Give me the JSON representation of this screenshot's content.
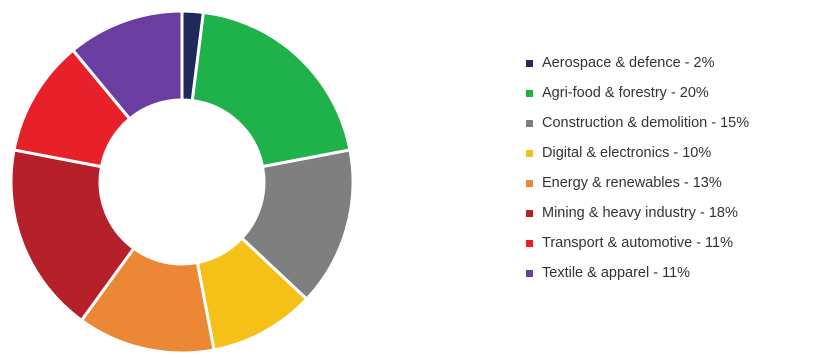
{
  "chart_data": {
    "type": "pie",
    "donut": true,
    "title": "",
    "legend_position": "right",
    "categories": [
      "Aerospace & defence",
      "Agri-food & forestry",
      "Construction & demolition",
      "Digital & electronics",
      "Energy & renewables",
      "Mining & heavy industry",
      "Transport & automotive",
      "Textile & apparel"
    ],
    "values": [
      2,
      20,
      15,
      10,
      13,
      18,
      11,
      11
    ],
    "legend_labels": [
      "Aerospace & defence - 2%",
      "Agri-food & forestry - 20%",
      "Construction & demolition - 15%",
      "Digital & electronics - 10%",
      "Energy & renewables - 13%",
      "Mining & heavy industry - 18%",
      "Transport & automotive - 11%",
      "Textile & apparel - 11%"
    ],
    "colors": [
      "#1f2a5a",
      "#1fb24b",
      "#7f7f7f",
      "#f5c118",
      "#ec8735",
      "#b5202a",
      "#e8202a",
      "#6a3da0"
    ],
    "unit": "%"
  }
}
